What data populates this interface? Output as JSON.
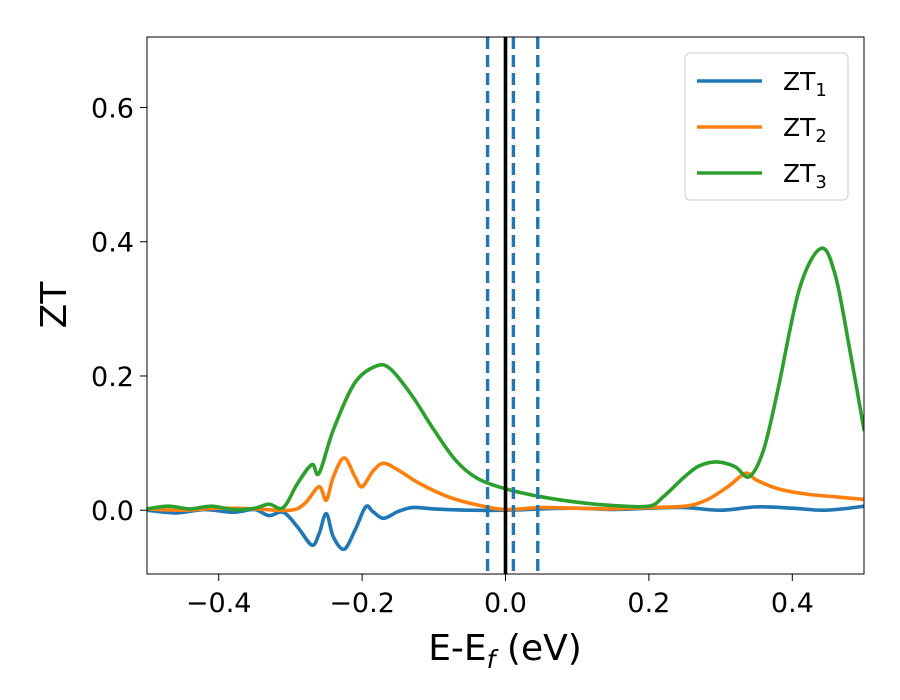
{
  "chart_data": {
    "type": "line",
    "title": "",
    "xlabel": "E-E",
    "xlabel_sub": "f",
    "xlabel_unit": " (eV)",
    "ylabel": "ZT",
    "xlim": [
      -0.5,
      0.5
    ],
    "ylim": [
      -0.095,
      0.705
    ],
    "x_ticks": [
      -0.4,
      -0.2,
      0.0,
      0.2,
      0.4
    ],
    "x_tick_labels": [
      "−0.4",
      "−0.2",
      "0.0",
      "0.2",
      "0.4"
    ],
    "y_ticks": [
      0.0,
      0.2,
      0.4,
      0.6
    ],
    "y_tick_labels": [
      "0.0",
      "0.2",
      "0.4",
      "0.6"
    ],
    "grid": false,
    "legend_position": "top-right",
    "vlines": [
      {
        "x": 0.0,
        "style": "solid",
        "color": "#000000"
      },
      {
        "x": -0.025,
        "style": "dashed",
        "color": "#1f77b4"
      },
      {
        "x": 0.011,
        "style": "dashed",
        "color": "#1f77b4"
      },
      {
        "x": 0.045,
        "style": "dashed",
        "color": "#1f77b4"
      }
    ],
    "series": [
      {
        "name": "ZT",
        "name_sub": "1",
        "color": "#1f77b4",
        "points": [
          [
            -0.5,
            0.0
          ],
          [
            -0.46,
            -0.004
          ],
          [
            -0.42,
            0.001
          ],
          [
            -0.38,
            -0.003
          ],
          [
            -0.35,
            0.001
          ],
          [
            -0.33,
            -0.008
          ],
          [
            -0.31,
            -0.003
          ],
          [
            -0.29,
            -0.025
          ],
          [
            -0.27,
            -0.052
          ],
          [
            -0.26,
            -0.035
          ],
          [
            -0.25,
            -0.005
          ],
          [
            -0.24,
            -0.04
          ],
          [
            -0.225,
            -0.058
          ],
          [
            -0.21,
            -0.03
          ],
          [
            -0.195,
            0.005
          ],
          [
            -0.185,
            -0.002
          ],
          [
            -0.17,
            -0.012
          ],
          [
            -0.15,
            -0.002
          ],
          [
            -0.13,
            0.004
          ],
          [
            -0.1,
            0.002
          ],
          [
            -0.05,
            0.0
          ],
          [
            0.0,
            0.0
          ],
          [
            0.05,
            0.002
          ],
          [
            0.1,
            0.003
          ],
          [
            0.15,
            0.001
          ],
          [
            0.2,
            0.003
          ],
          [
            0.25,
            0.004
          ],
          [
            0.3,
            0.0
          ],
          [
            0.35,
            0.005
          ],
          [
            0.4,
            0.003
          ],
          [
            0.44,
            0.0
          ],
          [
            0.47,
            0.002
          ],
          [
            0.5,
            0.006
          ]
        ]
      },
      {
        "name": "ZT",
        "name_sub": "2",
        "color": "#ff7f0e",
        "points": [
          [
            -0.5,
            0.002
          ],
          [
            -0.45,
            0.0
          ],
          [
            -0.4,
            0.003
          ],
          [
            -0.35,
            0.002
          ],
          [
            -0.3,
            0.0
          ],
          [
            -0.28,
            0.01
          ],
          [
            -0.26,
            0.035
          ],
          [
            -0.25,
            0.015
          ],
          [
            -0.24,
            0.05
          ],
          [
            -0.225,
            0.078
          ],
          [
            -0.21,
            0.05
          ],
          [
            -0.2,
            0.035
          ],
          [
            -0.185,
            0.058
          ],
          [
            -0.17,
            0.07
          ],
          [
            -0.15,
            0.06
          ],
          [
            -0.12,
            0.04
          ],
          [
            -0.08,
            0.02
          ],
          [
            -0.04,
            0.008
          ],
          [
            0.0,
            0.001
          ],
          [
            0.05,
            0.004
          ],
          [
            0.1,
            0.003
          ],
          [
            0.15,
            0.002
          ],
          [
            0.2,
            0.004
          ],
          [
            0.25,
            0.006
          ],
          [
            0.28,
            0.015
          ],
          [
            0.31,
            0.035
          ],
          [
            0.335,
            0.055
          ],
          [
            0.35,
            0.045
          ],
          [
            0.38,
            0.032
          ],
          [
            0.42,
            0.024
          ],
          [
            0.46,
            0.02
          ],
          [
            0.5,
            0.016
          ]
        ]
      },
      {
        "name": "ZT",
        "name_sub": "3",
        "color": "#2ca02c",
        "points": [
          [
            -0.5,
            0.002
          ],
          [
            -0.47,
            0.006
          ],
          [
            -0.44,
            0.002
          ],
          [
            -0.41,
            0.006
          ],
          [
            -0.38,
            0.001
          ],
          [
            -0.35,
            0.003
          ],
          [
            -0.33,
            0.009
          ],
          [
            -0.31,
            0.004
          ],
          [
            -0.29,
            0.04
          ],
          [
            -0.27,
            0.068
          ],
          [
            -0.26,
            0.055
          ],
          [
            -0.24,
            0.12
          ],
          [
            -0.21,
            0.19
          ],
          [
            -0.18,
            0.215
          ],
          [
            -0.16,
            0.21
          ],
          [
            -0.13,
            0.17
          ],
          [
            -0.1,
            0.12
          ],
          [
            -0.07,
            0.075
          ],
          [
            -0.04,
            0.048
          ],
          [
            0.0,
            0.032
          ],
          [
            0.05,
            0.02
          ],
          [
            0.1,
            0.012
          ],
          [
            0.15,
            0.007
          ],
          [
            0.2,
            0.006
          ],
          [
            0.22,
            0.02
          ],
          [
            0.25,
            0.05
          ],
          [
            0.27,
            0.066
          ],
          [
            0.295,
            0.072
          ],
          [
            0.32,
            0.065
          ],
          [
            0.34,
            0.05
          ],
          [
            0.36,
            0.09
          ],
          [
            0.38,
            0.18
          ],
          [
            0.41,
            0.33
          ],
          [
            0.44,
            0.39
          ],
          [
            0.46,
            0.35
          ],
          [
            0.48,
            0.24
          ],
          [
            0.5,
            0.12
          ]
        ]
      }
    ]
  }
}
